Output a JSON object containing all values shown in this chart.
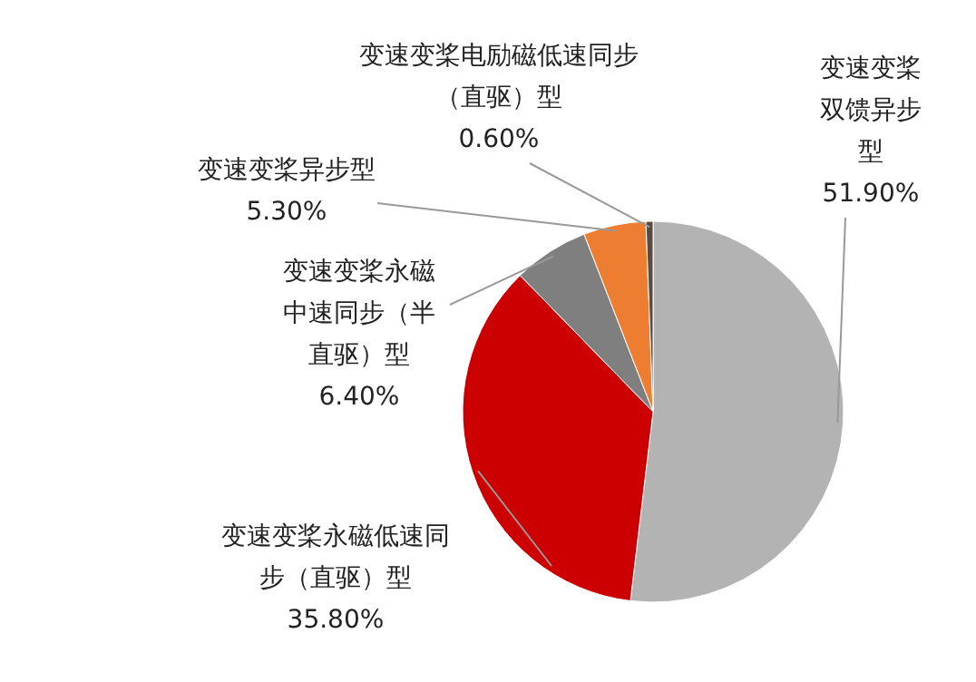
{
  "chart_data": {
    "type": "pie",
    "categories": [
      "变速变桨双馈异步型",
      "变速变桨永磁低速同步（直驱）型",
      "变速变桨永磁中速同步（半直驱）型",
      "变速变桨异步型",
      "变速变桨电励磁低速同步（直驱）型"
    ],
    "values": [
      51.9,
      35.8,
      6.4,
      5.3,
      0.6
    ],
    "value_labels": [
      "51.90%",
      "35.80%",
      "6.40%",
      "5.30%",
      "0.60%"
    ],
    "colors": [
      "#b3b3b3",
      "#cc0000",
      "#7f7f7f",
      "#ed7d31",
      "#5a4a42"
    ]
  }
}
